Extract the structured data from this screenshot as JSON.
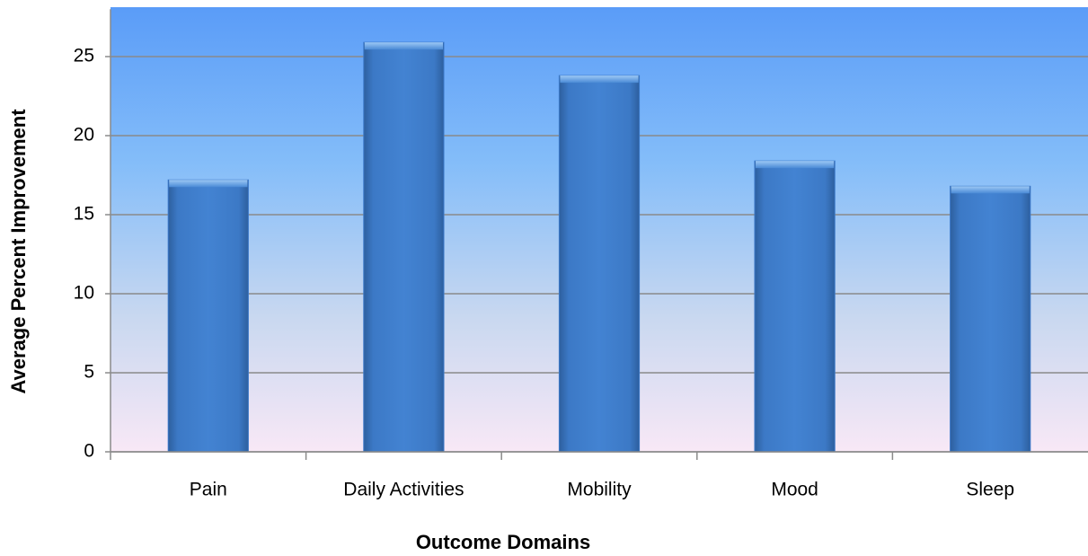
{
  "chart_data": {
    "type": "bar",
    "x_label": "Outcome Domains",
    "y_label": "Average Percent Improvement",
    "categories": [
      "Pain",
      "Daily Activities",
      "Mobility",
      "Mood",
      "Sleep"
    ],
    "values": [
      17.2,
      25.9,
      23.8,
      18.4,
      16.8
    ],
    "color": "#3b78c8",
    "ylim": [
      0,
      28
    ],
    "yticks": [
      0,
      5,
      10,
      15,
      20,
      25
    ],
    "grid": true
  }
}
